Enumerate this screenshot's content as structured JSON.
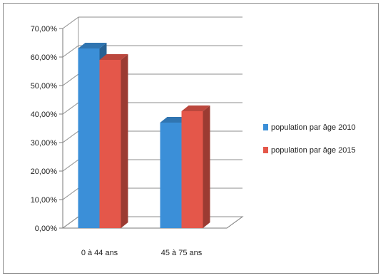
{
  "chart_data": {
    "type": "bar",
    "title": "",
    "xlabel": "",
    "ylabel": "",
    "categories": [
      "0 à 44 ans",
      "45 à 75 ans"
    ],
    "series": [
      {
        "name": "population par âge 2010",
        "values": [
          63.0,
          37.0
        ],
        "color": "#3b8fd8"
      },
      {
        "name": "population par âge 2015",
        "values": [
          59.0,
          41.0
        ],
        "color": "#e4574a"
      }
    ],
    "ylim": [
      0,
      70
    ],
    "yticks": [
      "0,00%",
      "10,00%",
      "20,00%",
      "30,00%",
      "40,00%",
      "50,00%",
      "60,00%",
      "70,00%"
    ],
    "grid": true,
    "legend": "right",
    "style": "3d-clustered-column"
  }
}
